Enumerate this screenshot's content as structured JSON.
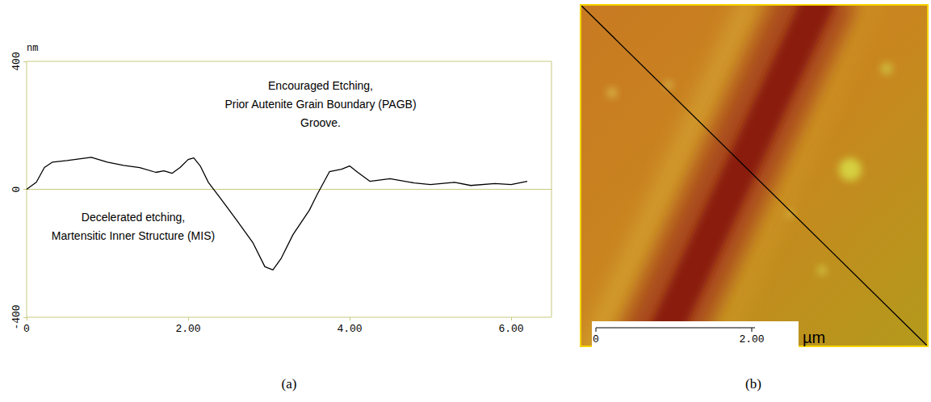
{
  "chart_data": [
    {
      "type": "line",
      "caption": "(a)",
      "y_label": "nm",
      "x": [
        0,
        0.12,
        0.22,
        0.32,
        0.5,
        0.8,
        1.0,
        1.2,
        1.4,
        1.6,
        1.7,
        1.8,
        1.9,
        2.0,
        2.07,
        2.15,
        2.25,
        2.4,
        2.6,
        2.8,
        2.95,
        3.05,
        3.15,
        3.3,
        3.5,
        3.6,
        3.75,
        3.9,
        4.0,
        4.1,
        4.25,
        4.5,
        4.8,
        5.0,
        5.3,
        5.5,
        5.8,
        6.0,
        6.2
      ],
      "values": [
        0,
        22,
        68,
        85,
        90,
        100,
        85,
        75,
        68,
        53,
        58,
        50,
        68,
        93,
        98,
        73,
        22,
        -28,
        -96,
        -166,
        -242,
        -252,
        -217,
        -141,
        -66,
        -15,
        55,
        63,
        73,
        53,
        25,
        33,
        20,
        15,
        22,
        12,
        18,
        15,
        25
      ],
      "color": "#000000",
      "xlim": [
        0,
        6.5
      ],
      "xticks": [
        0,
        {
          "value": 2,
          "label": "2.00"
        },
        {
          "value": 4,
          "label": "4.00"
        },
        {
          "value": 6,
          "label": "6.00"
        }
      ],
      "ylim": [
        -400,
        400
      ],
      "yticks": [
        -400,
        0,
        400
      ],
      "grid": false,
      "annotations": [
        {
          "text": "Encouraged Etching,\nPrior Autenite Grain Boundary (PAGB)\nGroove.",
          "x": 3.64,
          "y": 267
        },
        {
          "text": "Decelerated etching,\nMartensitic Inner Structure (MIS)",
          "x": 1.32,
          "y": -115
        }
      ]
    },
    {
      "type": "image",
      "caption": "(b)",
      "scale_bar": {
        "xlim": [
          0,
          2.6
        ],
        "xticks": [
          0,
          {
            "value": 2,
            "label": "2.00"
          }
        ],
        "unit": "µm"
      }
    }
  ]
}
